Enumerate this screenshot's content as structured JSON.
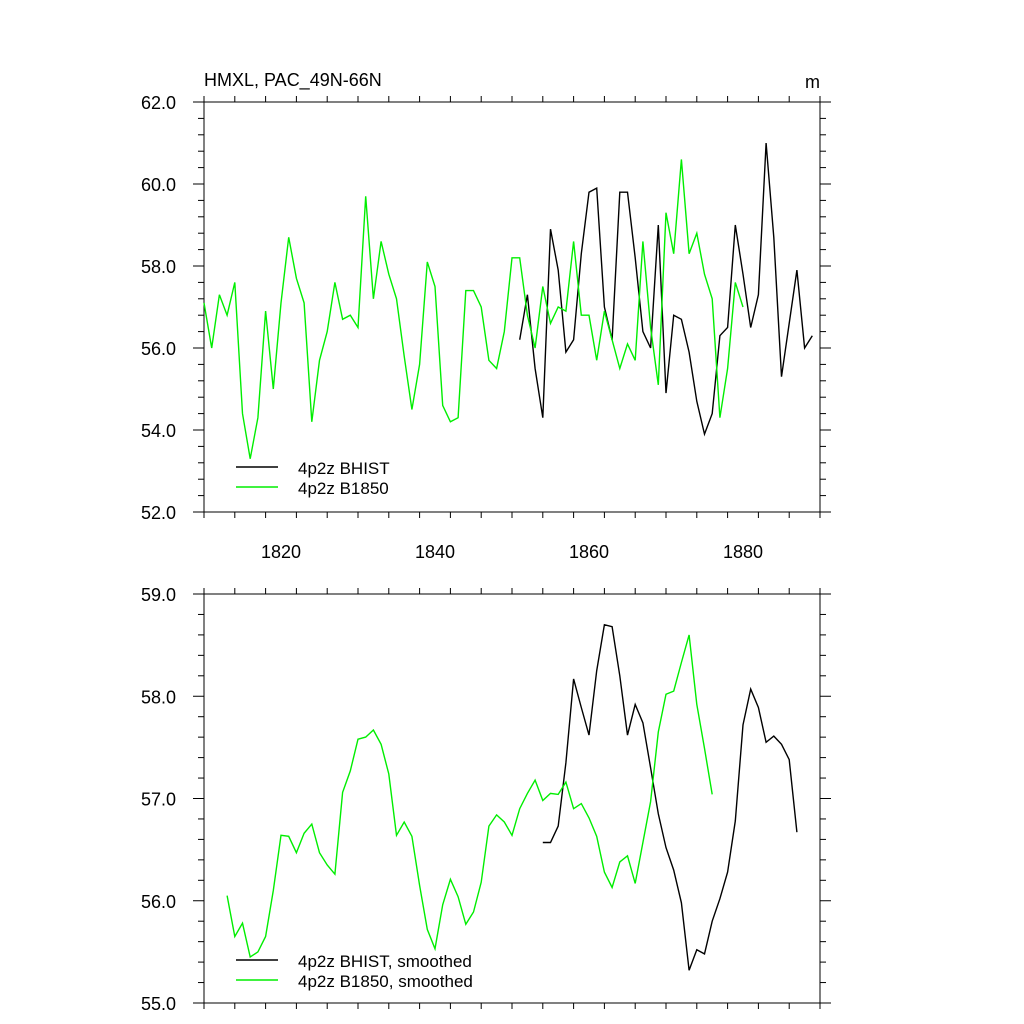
{
  "colors": {
    "bhist": "#000000",
    "b1850": "#00ee00",
    "axis": "#000000"
  },
  "chart_data": [
    {
      "type": "line",
      "title": "HMXL, PAC_49N-66N",
      "units": "m",
      "xlabel": "",
      "ylabel": "",
      "xlim": [
        1810,
        1890
      ],
      "ylim": [
        52,
        62
      ],
      "xticks": [
        1820,
        1840,
        1860,
        1880
      ],
      "xtick_labels": [
        "1820",
        "1840",
        "1860",
        "1880"
      ],
      "yticks": [
        52,
        54,
        56,
        58,
        60,
        62
      ],
      "ytick_labels": [
        "52.0",
        "54.0",
        "56.0",
        "58.0",
        "60.0",
        "62.0"
      ],
      "legend_position": "bottom-left",
      "series": [
        {
          "name": "4p2z BHIST",
          "color": "#000000",
          "x": [
            1851,
            1852,
            1853,
            1854,
            1855,
            1856,
            1857,
            1858,
            1859,
            1860,
            1861,
            1862,
            1863,
            1864,
            1865,
            1866,
            1867,
            1868,
            1869,
            1870,
            1871,
            1872,
            1873,
            1874,
            1875,
            1876,
            1877,
            1878,
            1879,
            1880,
            1881,
            1882,
            1883,
            1884,
            1885,
            1886,
            1887,
            1888,
            1889
          ],
          "y": [
            56.2,
            57.3,
            55.5,
            54.3,
            58.9,
            57.9,
            55.9,
            56.2,
            58.3,
            59.8,
            59.9,
            57.0,
            56.2,
            59.8,
            59.8,
            58.2,
            56.4,
            56.0,
            59.0,
            54.9,
            56.8,
            56.7,
            55.9,
            54.7,
            53.9,
            54.4,
            56.3,
            56.5,
            59.0,
            57.8,
            56.5,
            57.3,
            61.0,
            58.7,
            55.3,
            56.6,
            57.9,
            56.0,
            56.3
          ]
        },
        {
          "name": "4p2z B1850",
          "color": "#00ee00",
          "x": [
            1810,
            1811,
            1812,
            1813,
            1814,
            1815,
            1816,
            1817,
            1818,
            1819,
            1820,
            1821,
            1822,
            1823,
            1824,
            1825,
            1826,
            1827,
            1828,
            1829,
            1830,
            1831,
            1832,
            1833,
            1834,
            1835,
            1836,
            1837,
            1838,
            1839,
            1840,
            1841,
            1842,
            1843,
            1844,
            1845,
            1846,
            1847,
            1848,
            1849,
            1850,
            1851,
            1852,
            1853,
            1854,
            1855,
            1856,
            1857,
            1858,
            1859,
            1860,
            1861,
            1862,
            1863,
            1864,
            1865,
            1866,
            1867,
            1868,
            1869,
            1870,
            1871,
            1872,
            1873,
            1874,
            1875,
            1876,
            1877,
            1878,
            1879,
            1880
          ],
          "y": [
            57.1,
            56.0,
            57.3,
            56.8,
            57.6,
            54.4,
            53.3,
            54.3,
            56.9,
            55.0,
            57.1,
            58.7,
            57.7,
            57.1,
            54.2,
            55.7,
            56.4,
            57.6,
            56.7,
            56.8,
            56.5,
            59.7,
            57.2,
            58.6,
            57.8,
            57.2,
            55.8,
            54.5,
            55.6,
            58.1,
            57.5,
            54.6,
            54.2,
            54.3,
            57.4,
            57.4,
            57.0,
            55.7,
            55.5,
            56.4,
            58.2,
            58.2,
            56.8,
            56.0,
            57.5,
            56.6,
            57.0,
            56.9,
            58.6,
            56.8,
            56.8,
            55.7,
            56.9,
            56.2,
            55.5,
            56.1,
            55.7,
            58.6,
            56.5,
            55.1,
            59.3,
            58.3,
            60.6,
            58.3,
            58.8,
            57.8,
            57.2,
            54.3,
            55.5,
            57.6,
            57.0
          ]
        }
      ]
    },
    {
      "type": "line",
      "title": "",
      "xlabel": "",
      "ylabel": "",
      "xlim": [
        1810,
        1890
      ],
      "ylim": [
        55,
        59
      ],
      "xticks": [
        1820,
        1840,
        1860,
        1880
      ],
      "yticks": [
        55,
        56,
        57,
        58,
        59
      ],
      "ytick_labels": [
        "55.0",
        "56.0",
        "57.0",
        "58.0",
        "59.0"
      ],
      "legend_position": "bottom-left",
      "series": [
        {
          "name": "4p2z BHIST, smoothed",
          "color": "#000000",
          "x": [
            1854,
            1855,
            1856,
            1857,
            1858,
            1859,
            1860,
            1861,
            1862,
            1863,
            1864,
            1865,
            1866,
            1867,
            1868,
            1869,
            1870,
            1871,
            1872,
            1873,
            1874,
            1875,
            1876,
            1877,
            1878,
            1879,
            1880,
            1881,
            1882,
            1883,
            1884,
            1885,
            1886,
            1887
          ],
          "y": [
            56.57,
            56.57,
            56.73,
            57.35,
            58.17,
            57.89,
            57.62,
            58.25,
            58.7,
            58.68,
            58.2,
            57.62,
            57.92,
            57.74,
            57.3,
            56.85,
            56.52,
            56.3,
            55.98,
            55.32,
            55.52,
            55.48,
            55.8,
            56.02,
            56.28,
            56.78,
            57.72,
            58.07,
            57.89,
            57.55,
            57.61,
            57.53,
            57.38,
            56.67
          ]
        },
        {
          "name": "4p2z B1850, smoothed",
          "color": "#00ee00",
          "x": [
            1813,
            1814,
            1815,
            1816,
            1817,
            1818,
            1819,
            1820,
            1821,
            1822,
            1823,
            1824,
            1825,
            1826,
            1827,
            1828,
            1829,
            1830,
            1831,
            1832,
            1833,
            1834,
            1835,
            1836,
            1837,
            1838,
            1839,
            1840,
            1841,
            1842,
            1843,
            1844,
            1845,
            1846,
            1847,
            1848,
            1849,
            1850,
            1851,
            1852,
            1853,
            1854,
            1855,
            1856,
            1857,
            1858,
            1859,
            1860,
            1861,
            1862,
            1863,
            1864,
            1865,
            1866,
            1867,
            1868,
            1869,
            1870,
            1871,
            1872,
            1873,
            1874,
            1875,
            1876
          ],
          "y": [
            56.05,
            55.65,
            55.78,
            55.45,
            55.5,
            55.65,
            56.1,
            56.64,
            56.63,
            56.47,
            56.66,
            56.75,
            56.47,
            56.35,
            56.26,
            57.06,
            57.27,
            57.58,
            57.6,
            57.67,
            57.53,
            57.24,
            56.64,
            56.77,
            56.63,
            56.15,
            55.72,
            55.53,
            55.96,
            56.21,
            56.04,
            55.77,
            55.89,
            56.18,
            56.73,
            56.84,
            56.77,
            56.64,
            56.9,
            57.05,
            57.18,
            56.98,
            57.05,
            57.04,
            57.16,
            56.9,
            56.95,
            56.81,
            56.63,
            56.28,
            56.13,
            56.38,
            56.44,
            56.17,
            56.57,
            56.97,
            57.65,
            58.02,
            58.05,
            58.33,
            58.6,
            57.92,
            57.49,
            57.04
          ]
        }
      ]
    }
  ]
}
